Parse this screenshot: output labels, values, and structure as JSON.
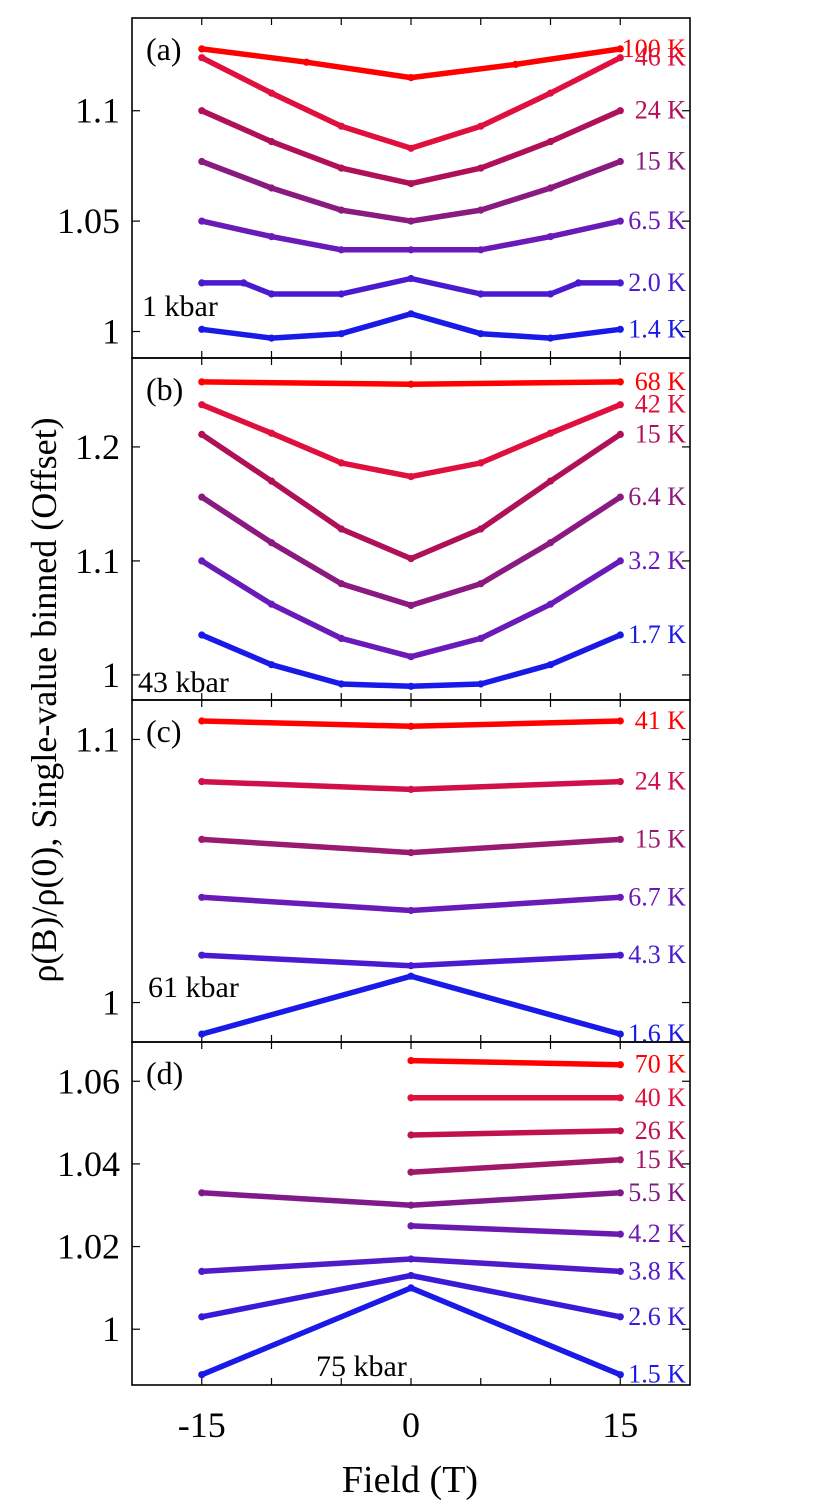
{
  "chart_data": {
    "type": "line",
    "title": "",
    "xlabel": "Field (T)",
    "ylabel": "ρ(B)/ρ(0), Single-value binned (Offset)",
    "xlim": [
      -20,
      20
    ],
    "xticks": [
      -15,
      0,
      15
    ],
    "xtick_labels": [
      "-15",
      "0",
      "15"
    ],
    "panels": [
      {
        "letter": "(a)",
        "pressure": "1 kbar",
        "ylim": [
          0.988,
          1.142
        ],
        "yticks": [
          1,
          1.05,
          1.1
        ],
        "ytick_labels": [
          "1",
          "1.05",
          "1.1"
        ],
        "series": [
          {
            "name": "100 K",
            "color": "#ff0000",
            "x": [
              -15,
              -7.5,
              0,
              7.5,
              15
            ],
            "y": [
              1.128,
              1.122,
              1.115,
              1.121,
              1.128
            ]
          },
          {
            "name": "46 K",
            "color": "#e0103e",
            "x": [
              -15,
              -10,
              -5,
              0,
              5,
              10,
              15
            ],
            "y": [
              1.124,
              1.108,
              1.093,
              1.083,
              1.093,
              1.108,
              1.124
            ]
          },
          {
            "name": "24 K",
            "color": "#b01058",
            "x": [
              -15,
              -10,
              -5,
              0,
              5,
              10,
              15
            ],
            "y": [
              1.1,
              1.086,
              1.074,
              1.067,
              1.074,
              1.086,
              1.1
            ]
          },
          {
            "name": "15 K",
            "color": "#8a1a80",
            "x": [
              -15,
              -10,
              -5,
              0,
              5,
              10,
              15
            ],
            "y": [
              1.077,
              1.065,
              1.055,
              1.05,
              1.055,
              1.065,
              1.077
            ]
          },
          {
            "name": "6.5 K",
            "color": "#6a1ab8",
            "x": [
              -15,
              -10,
              -5,
              0,
              5,
              10,
              15
            ],
            "y": [
              1.05,
              1.043,
              1.037,
              1.037,
              1.037,
              1.043,
              1.05
            ]
          },
          {
            "name": "2.0 K",
            "color": "#4a1ad0",
            "x": [
              -15,
              -12,
              -10,
              -5,
              0,
              5,
              10,
              12,
              15
            ],
            "y": [
              1.022,
              1.022,
              1.017,
              1.017,
              1.024,
              1.017,
              1.017,
              1.022,
              1.022
            ]
          },
          {
            "name": "1.4 K",
            "color": "#1a1ae8",
            "x": [
              -15,
              -10,
              -5,
              0,
              5,
              10,
              15
            ],
            "y": [
              1.001,
              0.997,
              0.999,
              1.008,
              0.999,
              0.997,
              1.001
            ]
          }
        ]
      },
      {
        "letter": "(b)",
        "pressure": "43 kbar",
        "ylim": [
          0.978,
          1.278
        ],
        "yticks": [
          1,
          1.1,
          1.2
        ],
        "ytick_labels": [
          "1",
          "1.1",
          "1.2"
        ],
        "series": [
          {
            "name": "68 K",
            "color": "#ff0000",
            "x": [
              -15,
              0,
              15
            ],
            "y": [
              1.257,
              1.255,
              1.257
            ]
          },
          {
            "name": "42 K",
            "color": "#e0103e",
            "x": [
              -15,
              -10,
              -5,
              0,
              5,
              10,
              15
            ],
            "y": [
              1.237,
              1.212,
              1.186,
              1.174,
              1.186,
              1.212,
              1.237
            ]
          },
          {
            "name": "15 K",
            "color": "#b01058",
            "x": [
              -15,
              -10,
              -5,
              0,
              5,
              10,
              15
            ],
            "y": [
              1.211,
              1.17,
              1.128,
              1.102,
              1.128,
              1.17,
              1.211
            ]
          },
          {
            "name": "6.4 K",
            "color": "#8a1a80",
            "x": [
              -15,
              -10,
              -5,
              0,
              5,
              10,
              15
            ],
            "y": [
              1.156,
              1.116,
              1.08,
              1.061,
              1.08,
              1.116,
              1.156
            ]
          },
          {
            "name": "3.2 K",
            "color": "#6a1ab8",
            "x": [
              -15,
              -10,
              -5,
              0,
              5,
              10,
              15
            ],
            "y": [
              1.1,
              1.062,
              1.032,
              1.016,
              1.032,
              1.062,
              1.1
            ]
          },
          {
            "name": "1.7 K",
            "color": "#1a1ae8",
            "x": [
              -15,
              -10,
              -5,
              0,
              5,
              10,
              15
            ],
            "y": [
              1.035,
              1.009,
              0.992,
              0.99,
              0.992,
              1.009,
              1.035
            ]
          }
        ]
      },
      {
        "letter": "(c)",
        "pressure": "61 kbar",
        "ylim": [
          0.985,
          1.115
        ],
        "yticks": [
          1,
          1.1
        ],
        "ytick_labels": [
          "1",
          "1.1"
        ],
        "series": [
          {
            "name": "41 K",
            "color": "#ff0000",
            "x": [
              -15,
              0,
              15
            ],
            "y": [
              1.107,
              1.105,
              1.107
            ]
          },
          {
            "name": "24 K",
            "color": "#d0104a",
            "x": [
              -15,
              0,
              15
            ],
            "y": [
              1.084,
              1.081,
              1.084
            ]
          },
          {
            "name": "15 K",
            "color": "#9a1a70",
            "x": [
              -15,
              0,
              15
            ],
            "y": [
              1.062,
              1.057,
              1.062
            ]
          },
          {
            "name": "6.7 K",
            "color": "#6a1ab8",
            "x": [
              -15,
              0,
              15
            ],
            "y": [
              1.04,
              1.035,
              1.04
            ]
          },
          {
            "name": "4.3 K",
            "color": "#4a1ad0",
            "x": [
              -15,
              0,
              15
            ],
            "y": [
              1.018,
              1.014,
              1.018
            ]
          },
          {
            "name": "1.6 K",
            "color": "#1a1ae8",
            "x": [
              -15,
              0,
              15
            ],
            "y": [
              0.988,
              1.01,
              0.988
            ]
          }
        ]
      },
      {
        "letter": "(d)",
        "pressure": "75 kbar",
        "ylim": [
          0.9865,
          1.0695
        ],
        "yticks": [
          1,
          1.02,
          1.04,
          1.06
        ],
        "ytick_labels": [
          "1",
          "1.02",
          "1.04",
          "1.06"
        ],
        "series": [
          {
            "name": "70 K",
            "color": "#ff0000",
            "x": [
              0,
              15
            ],
            "y": [
              1.065,
              1.064
            ]
          },
          {
            "name": "40 K",
            "color": "#e0103e",
            "x": [
              0,
              15
            ],
            "y": [
              1.056,
              1.056
            ]
          },
          {
            "name": "26 K",
            "color": "#c01050",
            "x": [
              0,
              15
            ],
            "y": [
              1.047,
              1.048
            ]
          },
          {
            "name": "15 K",
            "color": "#a01868",
            "x": [
              0,
              15
            ],
            "y": [
              1.038,
              1.041
            ]
          },
          {
            "name": "5.5 K",
            "color": "#801a8a",
            "x": [
              -15,
              0,
              15
            ],
            "y": [
              1.033,
              1.03,
              1.033
            ]
          },
          {
            "name": "4.2 K",
            "color": "#6a1ab0",
            "x": [
              0,
              15
            ],
            "y": [
              1.025,
              1.023
            ]
          },
          {
            "name": "3.8 K",
            "color": "#4f1ac8",
            "x": [
              -15,
              0,
              15
            ],
            "y": [
              1.014,
              1.017,
              1.014
            ]
          },
          {
            "name": "2.6 K",
            "color": "#3a1ad8",
            "x": [
              -15,
              0,
              15
            ],
            "y": [
              1.003,
              1.013,
              1.003
            ]
          },
          {
            "name": "1.5 K",
            "color": "#1a1ae8",
            "x": [
              -15,
              0,
              15
            ],
            "y": [
              0.989,
              1.01,
              0.989
            ]
          }
        ]
      }
    ]
  }
}
